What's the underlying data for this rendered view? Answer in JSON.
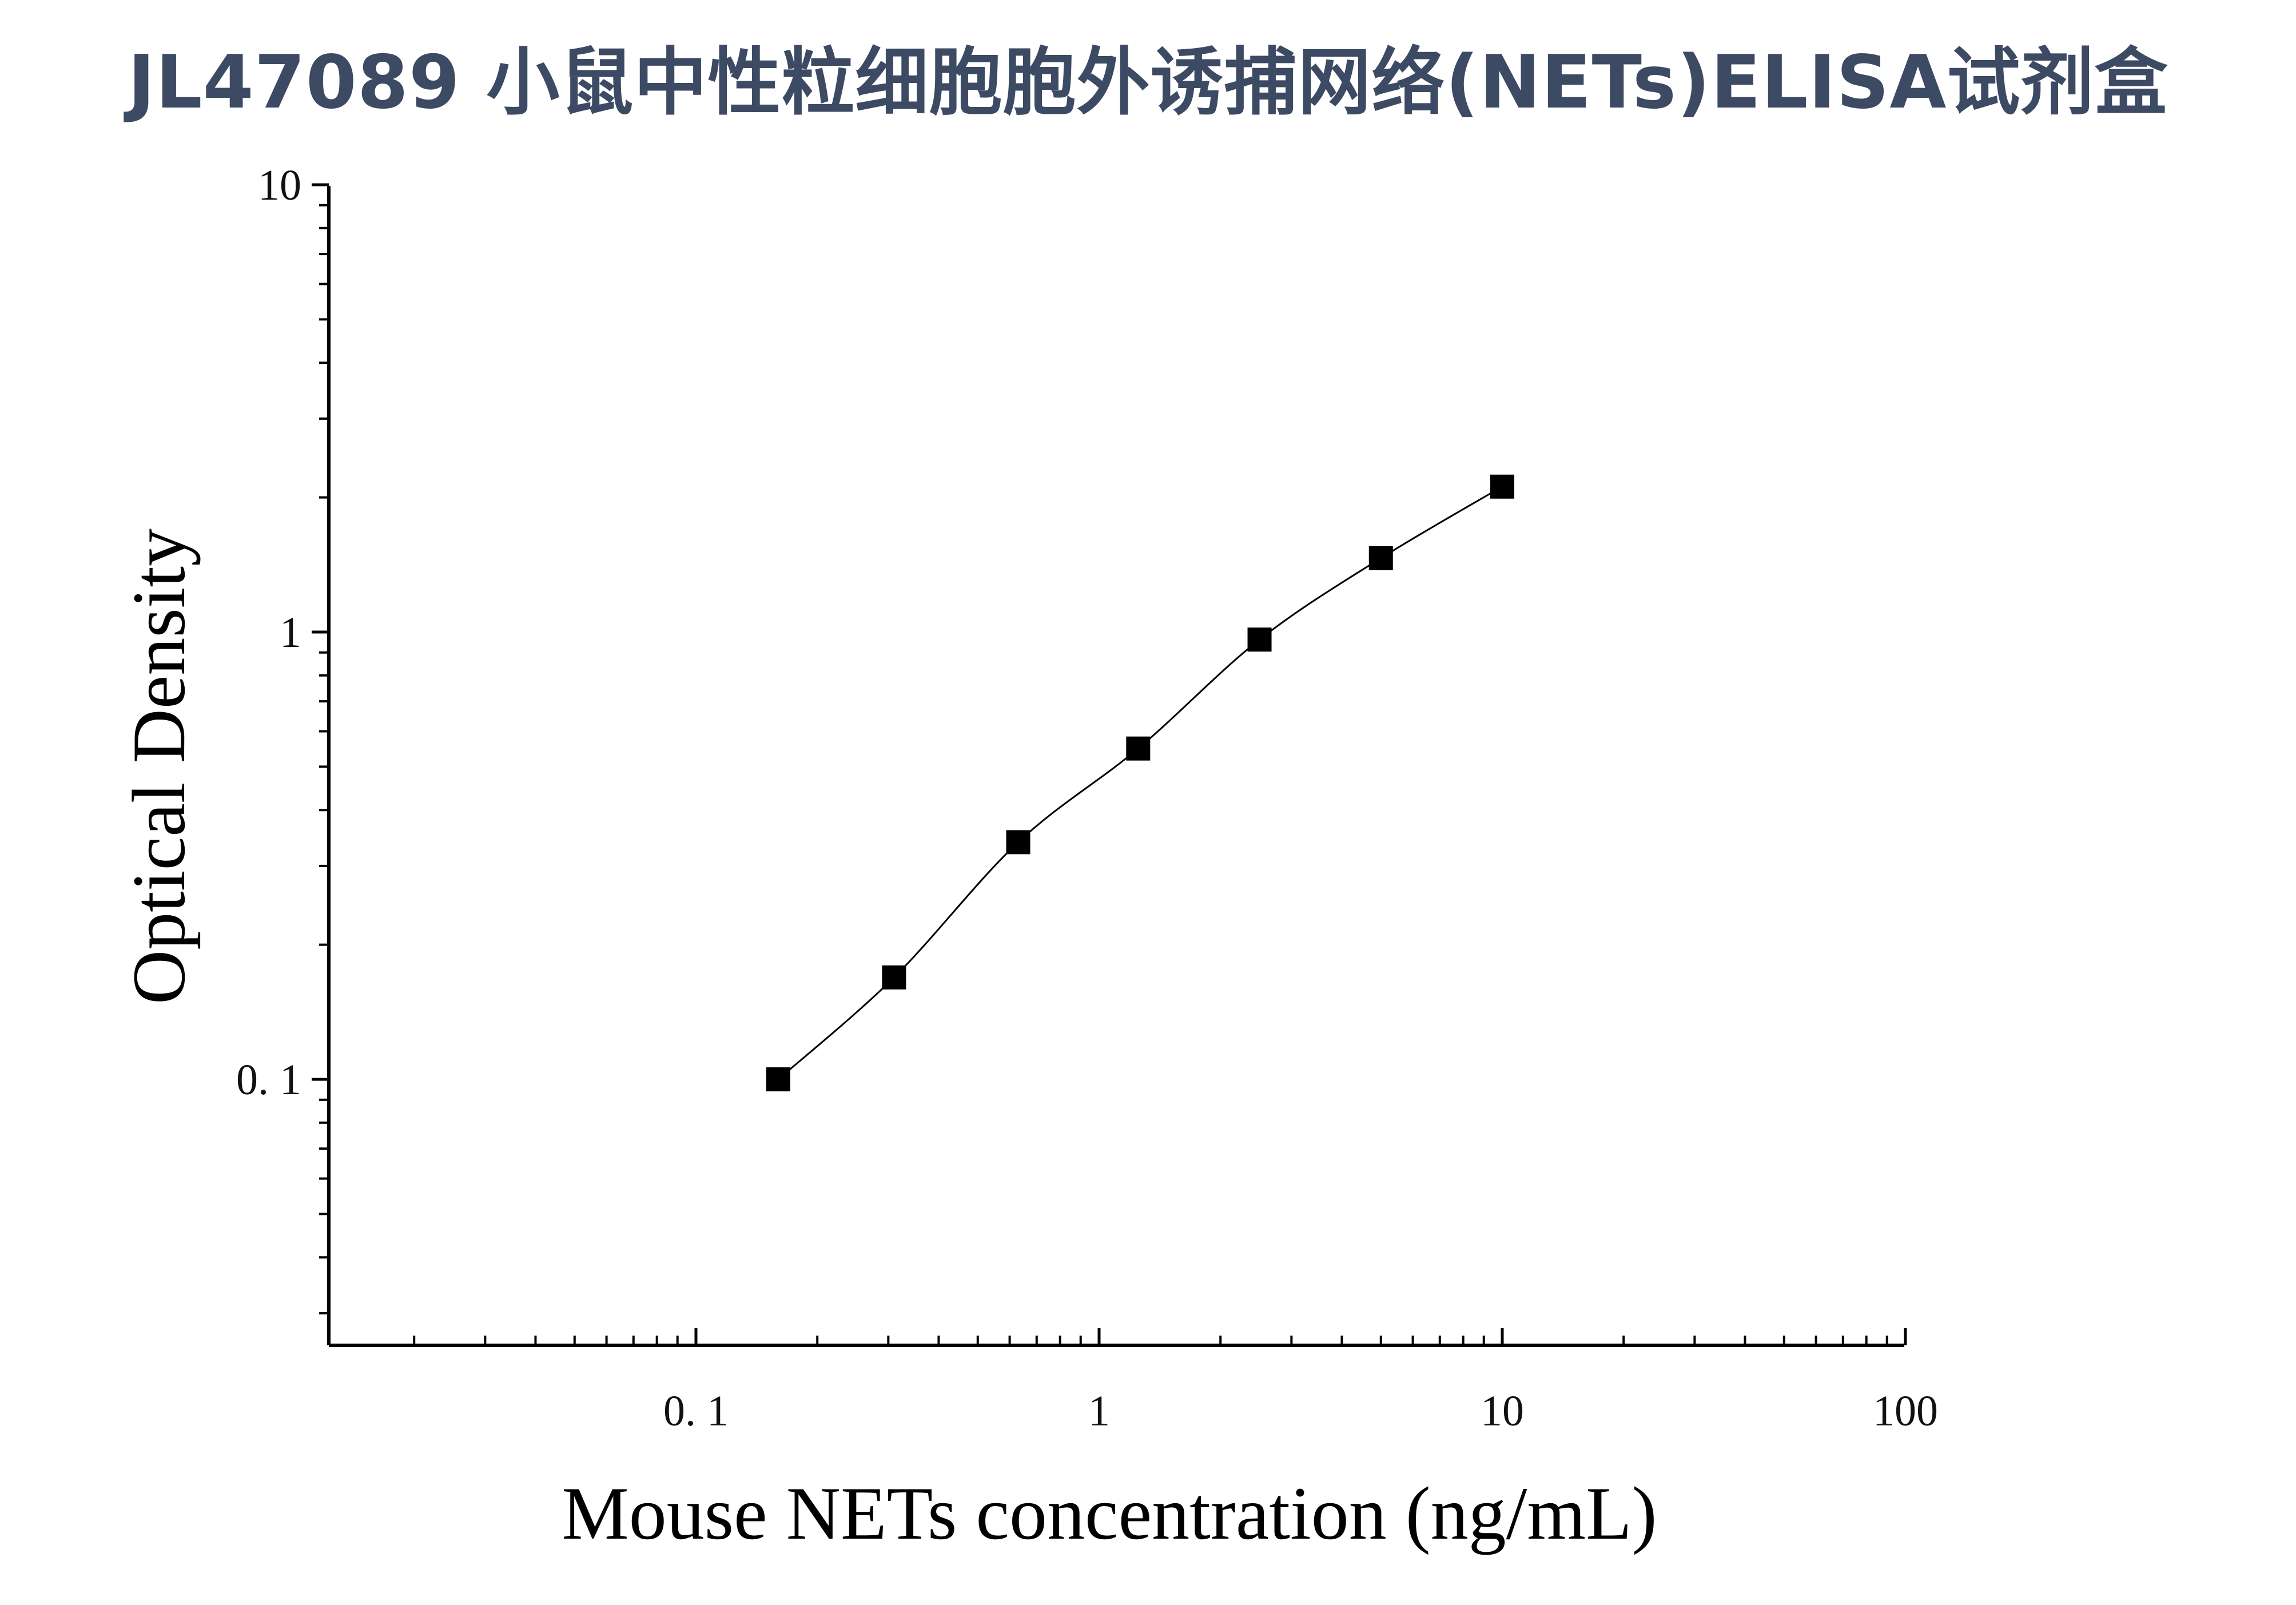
{
  "title": "JL47089 小鼠中性粒细胞胞外诱捕网络(NETs)ELISA试剂盒",
  "colors": {
    "title": "#3d4a63",
    "axis": "#000000",
    "marker": "#000000",
    "curve": "#000000"
  },
  "chart_data": {
    "type": "scatter",
    "title": "",
    "xlabel": "Mouse NETs concentration (ng/mL)",
    "ylabel": "Optical Density",
    "x_scale": "log",
    "y_scale": "log",
    "xlim": [
      0.01,
      100
    ],
    "ylim": [
      0.025,
      10
    ],
    "x_ticks": [
      {
        "value": 0.1,
        "label": "0. 1"
      },
      {
        "value": 1,
        "label": "1"
      },
      {
        "value": 10,
        "label": "10"
      },
      {
        "value": 100,
        "label": "100"
      }
    ],
    "y_ticks": [
      {
        "value": 0.1,
        "label": "0. 1"
      },
      {
        "value": 1,
        "label": "1"
      },
      {
        "value": 10,
        "label": "10"
      }
    ],
    "grid": false,
    "legend": "none",
    "series": [
      {
        "marker": "square",
        "fit_curve": true,
        "x": [
          0.16,
          0.31,
          0.63,
          1.25,
          2.5,
          5,
          10
        ],
        "y": [
          0.1,
          0.169,
          0.339,
          0.549,
          0.962,
          1.463,
          2.114
        ]
      }
    ]
  }
}
